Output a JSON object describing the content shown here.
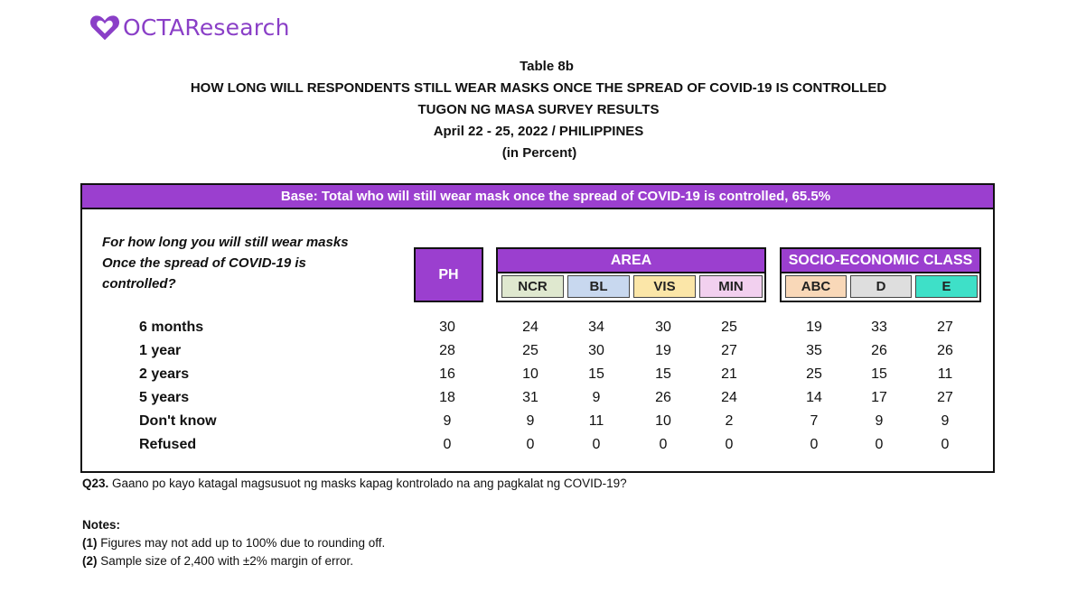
{
  "logo": {
    "text": "OCTAResearch",
    "brand_color": "#8a3fc7"
  },
  "titles": {
    "table_no": "Table 8b",
    "main": "HOW LONG WILL RESPONDENTS STILL WEAR MASKS ONCE THE SPREAD OF COVID-19 IS CONTROLLED",
    "survey": "TUGON NG MASA SURVEY RESULTS",
    "date": "April 22 - 25, 2022 /  PHILIPPINES",
    "unit": "(in Percent)"
  },
  "base": "Base: Total who will still wear mask once the spread of COVID-19 is controlled, 65.5%",
  "question": [
    "For how long you will still wear masks",
    "Once the spread of COVID-19 is",
    "controlled?"
  ],
  "headers": {
    "ph": "PH",
    "area_label": "AREA",
    "sec_label": "SOCIO-ECONOMIC CLASS",
    "area": [
      {
        "label": "NCR",
        "color": "#dfe8cf"
      },
      {
        "label": "BL",
        "color": "#c8d8ef"
      },
      {
        "label": "VIS",
        "color": "#fbe6a8"
      },
      {
        "label": "MIN",
        "color": "#f2d0ef"
      }
    ],
    "sec": [
      {
        "label": "ABC",
        "color": "#f9d8b8"
      },
      {
        "label": "D",
        "color": "#dedede"
      },
      {
        "label": "E",
        "color": "#3ee0c8"
      }
    ],
    "accent_color": "#9b3fcf"
  },
  "rows": [
    {
      "label": "6 months",
      "values": [
        "30",
        "24",
        "34",
        "30",
        "25",
        "19",
        "33",
        "27"
      ]
    },
    {
      "label": "1 year",
      "values": [
        "28",
        "25",
        "30",
        "19",
        "27",
        "35",
        "26",
        "26"
      ]
    },
    {
      "label": "2 years",
      "values": [
        "16",
        "10",
        "15",
        "15",
        "21",
        "25",
        "15",
        "11"
      ]
    },
    {
      "label": "5 years",
      "values": [
        "18",
        "31",
        "9",
        "26",
        "24",
        "14",
        "17",
        "27"
      ]
    },
    {
      "label": "Don't know",
      "values": [
        "9",
        "9",
        "11",
        "10",
        "2",
        "7",
        "9",
        "9"
      ]
    },
    {
      "label": "Refused",
      "values": [
        "0",
        "0",
        "0",
        "0",
        "0",
        "0",
        "0",
        "0"
      ]
    }
  ],
  "footer": {
    "question_code": "Q23.",
    "question_text": " Gaano po kayo katagal magsusuot ng masks kapag kontrolado na ang pagkalat ng COVID-19?",
    "notes_title": "Notes:",
    "notes": [
      {
        "num": "(1)",
        "text": " Figures may not add up to 100% due to rounding off."
      },
      {
        "num": "(2)",
        "text": " Sample size of 2,400 with ±2% margin of error."
      }
    ]
  }
}
